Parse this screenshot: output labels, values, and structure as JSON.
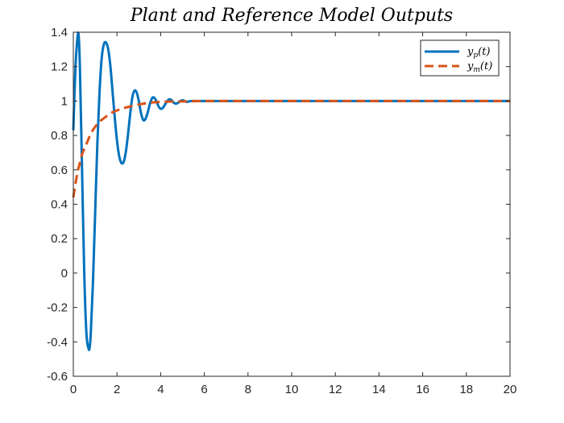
{
  "chart_data": {
    "type": "line",
    "title": "Plant and Reference Model Outputs",
    "xlabel": "",
    "ylabel": "",
    "xlim": [
      0,
      20
    ],
    "ylim": [
      -0.6,
      1.4
    ],
    "xticks": [
      0,
      2,
      4,
      6,
      8,
      10,
      12,
      14,
      16,
      18,
      20
    ],
    "yticks": [
      -0.6,
      -0.4,
      -0.2,
      0,
      0.2,
      0.4,
      0.6,
      0.8,
      1,
      1.2,
      1.4
    ],
    "xtick_labels": [
      "0",
      "2",
      "4",
      "6",
      "8",
      "10",
      "12",
      "14",
      "16",
      "18",
      "20"
    ],
    "ytick_labels": [
      "-0.6",
      "-0.4",
      "-0.2",
      "0",
      "0.2",
      "0.4",
      "0.6",
      "0.8",
      "1",
      "1.2",
      "1.4"
    ],
    "grid": false,
    "legend_position": "top-right",
    "series": [
      {
        "name": "y_p(t)",
        "legend_base": "y",
        "legend_sub": "p",
        "legend_suffix": "(t)",
        "color": "#0072BD",
        "style": "solid",
        "x": [
          0,
          0.1,
          0.2,
          0.25,
          0.3,
          0.4,
          0.5,
          0.6,
          0.7,
          0.75,
          0.8,
          0.9,
          1.0,
          1.1,
          1.2,
          1.3,
          1.4,
          1.5,
          1.6,
          1.7,
          1.8,
          1.9,
          2.0,
          2.1,
          2.2,
          2.3,
          2.4,
          2.5,
          2.6,
          2.7,
          2.8,
          2.9,
          3.0,
          3.1,
          3.2,
          3.3,
          3.4,
          3.5,
          3.6,
          3.7,
          3.8,
          3.9,
          4.0,
          4.1,
          4.2,
          4.3,
          4.4,
          4.5,
          4.6,
          4.7,
          4.8,
          4.9,
          5.0,
          5.1,
          5.2,
          5.3,
          5.4,
          5.5,
          5.6,
          5.7,
          5.8,
          5.9,
          6.0,
          6.2,
          6.4,
          6.6,
          6.8,
          7.0,
          7.2,
          7.4,
          7.6,
          7.8,
          8.0,
          8.5,
          9.0,
          10,
          11,
          12,
          13,
          14,
          15,
          16,
          17,
          18,
          19,
          20
        ],
        "y": [
          0.83,
          1.2,
          1.38,
          1.37,
          1.2,
          0.6,
          0.0,
          -0.35,
          -0.44,
          -0.43,
          -0.35,
          -0.05,
          0.35,
          0.75,
          1.05,
          1.25,
          1.33,
          1.34,
          1.3,
          1.2,
          1.05,
          0.9,
          0.77,
          0.68,
          0.64,
          0.645,
          0.7,
          0.8,
          0.92,
          1.02,
          1.06,
          1.05,
          1.0,
          0.93,
          0.89,
          0.895,
          0.93,
          0.98,
          1.015,
          1.02,
          1.0,
          0.97,
          0.955,
          0.96,
          0.98,
          1.0,
          1.01,
          1.005,
          0.99,
          0.985,
          0.99,
          1.0,
          1.005,
          1.0,
          0.995,
          0.998,
          1.0,
          1.0,
          1.0,
          1.0,
          1.0,
          1.0,
          1.0,
          1.0,
          1.0,
          1.0,
          1.0,
          1.0,
          1.0,
          1.0,
          1.0,
          1.0,
          1.0,
          1.0,
          1.0,
          1.0,
          1.0,
          1.0,
          1.0,
          1.0,
          1.0,
          1.0,
          1.0,
          1.0,
          1.0,
          1.0
        ]
      },
      {
        "name": "y_m(t)",
        "legend_base": "y",
        "legend_sub": "m",
        "legend_suffix": "(t)",
        "color": "#D95319",
        "style": "dashed",
        "x": [
          0,
          0.1,
          0.2,
          0.3,
          0.4,
          0.6,
          0.8,
          1.0,
          1.2,
          1.4,
          1.6,
          1.8,
          2.0,
          2.2,
          2.5,
          3.0,
          3.5,
          4.0,
          4.5,
          5.0,
          5.5,
          6.0,
          7.0,
          8.0,
          9.0,
          10,
          12,
          14,
          16,
          18,
          20
        ],
        "y": [
          0.44,
          0.52,
          0.59,
          0.64,
          0.69,
          0.75,
          0.81,
          0.85,
          0.88,
          0.9,
          0.92,
          0.935,
          0.945,
          0.955,
          0.965,
          0.98,
          0.99,
          0.995,
          0.997,
          0.998,
          0.999,
          1.0,
          1.0,
          1.0,
          1.0,
          1.0,
          1.0,
          1.0,
          1.0,
          1.0,
          1.0
        ]
      }
    ]
  }
}
